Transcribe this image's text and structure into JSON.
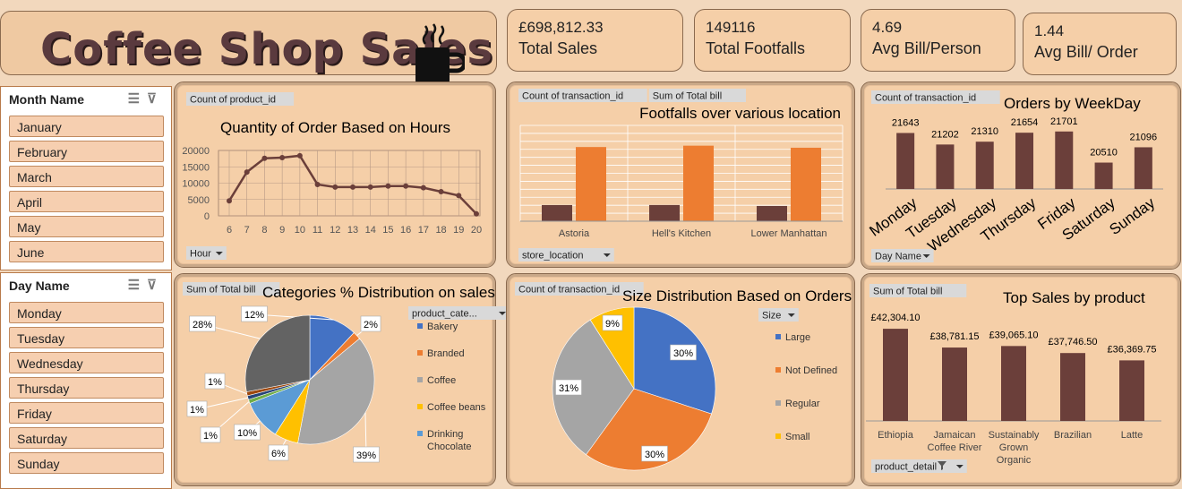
{
  "header": {
    "title": "Coffee Shop Sales",
    "logo_icon": "coffee-mug-icon"
  },
  "kpis": [
    {
      "value": "£698,812.33",
      "label": "Total Sales"
    },
    {
      "value": "149116",
      "label": "Total Footfalls"
    },
    {
      "value": "4.69",
      "label": "Avg Bill/Person"
    },
    {
      "value": "1.44",
      "label": "Avg Bill/ Order"
    }
  ],
  "slicers": {
    "month": {
      "title": "Month Name",
      "items": [
        "January",
        "February",
        "March",
        "April",
        "May",
        "June"
      ]
    },
    "day": {
      "title": "Day Name",
      "items": [
        "Monday",
        "Tuesday",
        "Wednesday",
        "Thursday",
        "Friday",
        "Saturday",
        "Sunday"
      ]
    }
  },
  "chart_data": [
    {
      "id": "hours",
      "type": "line",
      "title": "Quantity of Order Based on Hours",
      "value_field": "Count of product_id",
      "axis_field": "Hour",
      "x": [
        6,
        7,
        8,
        9,
        10,
        11,
        12,
        13,
        14,
        15,
        16,
        17,
        18,
        19,
        20
      ],
      "values": [
        4600,
        13400,
        17600,
        17800,
        18400,
        9600,
        8800,
        8800,
        8800,
        9100,
        9100,
        8600,
        7400,
        6200,
        600
      ],
      "ylim": [
        0,
        20000
      ],
      "yticks": [
        0,
        5000,
        10000,
        15000,
        20000
      ],
      "grid": true,
      "color": "#6b3f3a"
    },
    {
      "id": "footfalls",
      "type": "bar",
      "title": "Footfalls over various location",
      "value_fields": [
        "Count of transaction_id",
        "Sum of Total bill"
      ],
      "axis_field": "store_location",
      "categories": [
        "Astoria",
        "Hell's Kitchen",
        "Lower Manhattan"
      ],
      "series": [
        {
          "values": [
            50599,
            50735,
            47782
          ],
          "color": "#6b3f3a"
        },
        {
          "values": [
            232244,
            236511,
            230057
          ],
          "color": "#ed7d31"
        }
      ],
      "ylim": [
        0,
        300000
      ],
      "grid": true
    },
    {
      "id": "weekday",
      "type": "bar",
      "title": "Orders by WeekDay",
      "value_field": "Count of transaction_id",
      "axis_field": "Day Name",
      "categories": [
        "Monday",
        "Tuesday",
        "Wednesday",
        "Thursday",
        "Friday",
        "Saturday",
        "Sunday"
      ],
      "values": [
        21643,
        21202,
        21310,
        21654,
        21701,
        20510,
        21096
      ],
      "data_labels": [
        "21643",
        "21202",
        "21310",
        "21654",
        "21701",
        "20510",
        "21096"
      ],
      "color": "#6b3f3a"
    },
    {
      "id": "categories",
      "type": "pie",
      "title": "Categories % Distribution on sales",
      "value_field": "Sum of Total bill",
      "legend_field": "product_cate...",
      "legend": [
        "Bakery",
        "Branded",
        "Coffee",
        "Coffee beans",
        "Drinking Chocolate"
      ],
      "legend_colors": [
        "#4472c4",
        "#ed7d31",
        "#a5a5a5",
        "#ffc000",
        "#5b9bd5"
      ],
      "slices": [
        {
          "label": "12%",
          "value": 12,
          "color": "#4472c4"
        },
        {
          "label": "2%",
          "value": 2,
          "color": "#ed7d31"
        },
        {
          "label": "39%",
          "value": 39,
          "color": "#a5a5a5"
        },
        {
          "label": "6%",
          "value": 6,
          "color": "#ffc000"
        },
        {
          "label": "10%",
          "value": 10,
          "color": "#5b9bd5"
        },
        {
          "label": "1%",
          "value": 1,
          "color": "#70ad47"
        },
        {
          "label": "1%",
          "value": 1,
          "color": "#264478"
        },
        {
          "label": "1%",
          "value": 1,
          "color": "#9e480e"
        },
        {
          "label": "28%",
          "value": 28,
          "color": "#636363"
        }
      ]
    },
    {
      "id": "size",
      "type": "pie",
      "title": "Size Distribution Based on Orders",
      "value_field": "Count of transaction_id",
      "legend_field": "Size",
      "legend": [
        "Large",
        "Not Defined",
        "Regular",
        "Small"
      ],
      "legend_colors": [
        "#4472c4",
        "#ed7d31",
        "#a5a5a5",
        "#ffc000"
      ],
      "slices": [
        {
          "label": "30%",
          "value": 30,
          "color": "#4472c4"
        },
        {
          "label": "30%",
          "value": 30,
          "color": "#ed7d31"
        },
        {
          "label": "31%",
          "value": 31,
          "color": "#a5a5a5"
        },
        {
          "label": "9%",
          "value": 9,
          "color": "#ffc000"
        }
      ]
    },
    {
      "id": "products",
      "type": "bar",
      "title": "Top Sales by product",
      "value_field": "Sum of Total bill",
      "axis_field": "product_detail",
      "categories": [
        "Ethiopia",
        "Jamaican Coffee River",
        "Sustainably Grown Organic",
        "Brazilian",
        "Latte"
      ],
      "values": [
        42304.1,
        38781.15,
        39065.1,
        37746.5,
        36369.75
      ],
      "data_labels": [
        "£42,304.10",
        "£38,781.15",
        "£39,065.10",
        "£37,746.50",
        "£36,369.75"
      ],
      "color": "#6b3f3a"
    }
  ]
}
